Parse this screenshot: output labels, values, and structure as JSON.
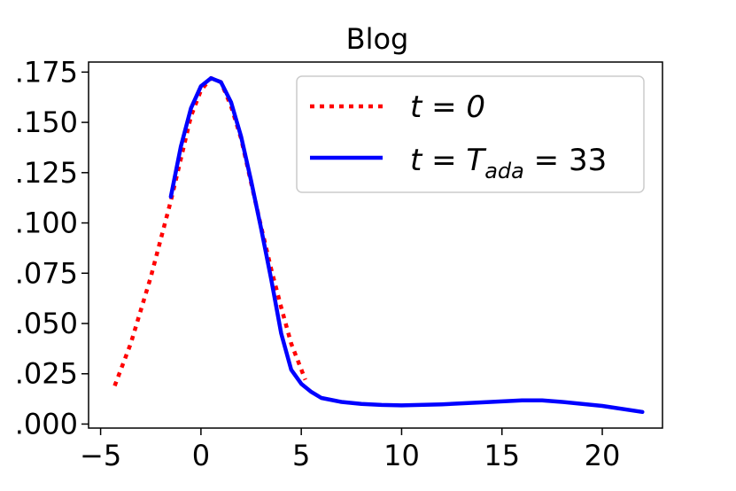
{
  "chart_data": {
    "type": "line",
    "title": "Blog",
    "xlabel": "",
    "ylabel": "",
    "xlim": [
      -5.6,
      23.0
    ],
    "ylim": [
      -0.002,
      0.18
    ],
    "grid": false,
    "legend_position": "top-right",
    "x_ticks": [
      -5,
      0,
      5,
      10,
      15,
      20
    ],
    "x_tick_labels": [
      "−5",
      "0",
      "5",
      "10",
      "15",
      "20"
    ],
    "y_ticks": [
      0.0,
      0.025,
      0.05,
      0.075,
      0.1,
      0.125,
      0.15,
      0.175
    ],
    "y_tick_labels": [
      ".000",
      ".025",
      ".050",
      ".075",
      ".100",
      ".125",
      ".150",
      ".175"
    ],
    "series": [
      {
        "name": "t = 0",
        "label_main": "t = 0",
        "style": "dotted",
        "color": "#ff0000",
        "x": [
          -4.3,
          -3.5,
          -2.5,
          -1.5,
          -0.5,
          0.0,
          0.5,
          1.0,
          1.5,
          2.0,
          2.5,
          3.0,
          3.5,
          4.0,
          4.5,
          5.2
        ],
        "y": [
          0.019,
          0.04,
          0.073,
          0.111,
          0.153,
          0.166,
          0.172,
          0.17,
          0.158,
          0.142,
          0.12,
          0.098,
          0.077,
          0.058,
          0.04,
          0.022
        ]
      },
      {
        "name": "t = T_ada = 33",
        "label_main": "t = T",
        "label_sub": "ada",
        "label_tail": " = 33",
        "style": "solid",
        "color": "#0000ff",
        "x": [
          -1.5,
          -1.0,
          -0.5,
          0.0,
          0.5,
          1.0,
          1.5,
          2.0,
          2.5,
          3.0,
          3.5,
          4.0,
          4.5,
          5.0,
          5.5,
          6.0,
          7.0,
          8.0,
          9.0,
          10.0,
          12.0,
          14.0,
          16.0,
          17.0,
          18.0,
          20.0,
          22.0
        ],
        "y": [
          0.113,
          0.138,
          0.157,
          0.168,
          0.172,
          0.17,
          0.16,
          0.143,
          0.121,
          0.097,
          0.072,
          0.045,
          0.027,
          0.02,
          0.016,
          0.013,
          0.011,
          0.01,
          0.0095,
          0.0093,
          0.0098,
          0.0108,
          0.0118,
          0.0118,
          0.011,
          0.009,
          0.006
        ]
      }
    ]
  }
}
